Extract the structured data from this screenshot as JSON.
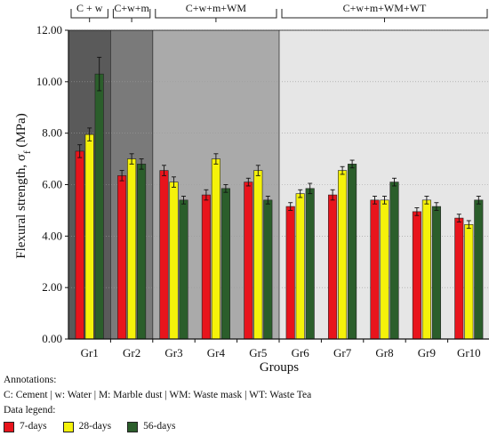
{
  "chart_data": {
    "type": "bar",
    "xlabel": "Groups",
    "ylabel_main": "Flexural strength, σ",
    "ylabel_sub": "f",
    "ylabel_unit": " (MPa)",
    "ylim": [
      0,
      12
    ],
    "yticks": [
      "0.00",
      "2.00",
      "4.00",
      "6.00",
      "8.00",
      "10.00",
      "12.00"
    ],
    "categories": [
      "Gr1",
      "Gr2",
      "Gr3",
      "Gr4",
      "Gr5",
      "Gr6",
      "Gr7",
      "Gr8",
      "Gr9",
      "Gr10"
    ],
    "series": [
      {
        "name": "7-days",
        "color": "#e8141c",
        "values": [
          7.3,
          6.35,
          6.55,
          5.6,
          6.1,
          5.15,
          5.6,
          5.4,
          4.95,
          4.7
        ],
        "errors": [
          0.25,
          0.2,
          0.2,
          0.2,
          0.15,
          0.15,
          0.2,
          0.15,
          0.15,
          0.15
        ]
      },
      {
        "name": "28-days",
        "color": "#f5f20a",
        "values": [
          7.95,
          7.0,
          6.1,
          7.0,
          6.55,
          5.65,
          6.55,
          5.4,
          5.4,
          4.45
        ],
        "errors": [
          0.25,
          0.2,
          0.2,
          0.2,
          0.2,
          0.15,
          0.15,
          0.15,
          0.15,
          0.15
        ]
      },
      {
        "name": "56-days",
        "color": "#2b5e2b",
        "values": [
          10.3,
          6.8,
          5.4,
          5.85,
          5.4,
          5.85,
          6.8,
          6.1,
          5.15,
          5.4
        ],
        "errors": [
          0.65,
          0.2,
          0.15,
          0.15,
          0.15,
          0.2,
          0.15,
          0.15,
          0.15,
          0.15
        ]
      }
    ],
    "group_regions": [
      {
        "label": "C + w",
        "start": 0,
        "end": 0,
        "color": "#5a5a5a"
      },
      {
        "label": "C+w+m",
        "start": 1,
        "end": 1,
        "color": "#7a7a7a"
      },
      {
        "label": "C+w+m+WM",
        "start": 2,
        "end": 4,
        "color": "#aaaaaa"
      },
      {
        "label": "C+w+m+WM+WT",
        "start": 5,
        "end": 9,
        "color": "#e6e6e6"
      }
    ]
  },
  "annotations": {
    "title": "Annotations:",
    "text": "C: Cement | w: Water | M: Marble dust | WM: Waste mask | WT: Waste Tea",
    "legend_title": "Data legend:"
  }
}
